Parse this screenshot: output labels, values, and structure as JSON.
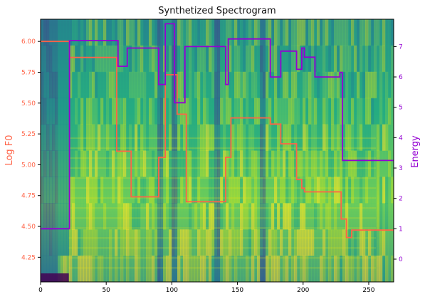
{
  "chart_data": {
    "type": "line",
    "title": "Synthetized Spectrogram",
    "xlabel": "",
    "ylabel_left": "Log F0",
    "ylabel_right": "Energy",
    "xlim": [
      0,
      269
    ],
    "ylim_left": [
      4.05,
      6.18
    ],
    "ylim_right": [
      -0.75,
      7.9
    ],
    "xticks": [
      0,
      50,
      100,
      150,
      200,
      250
    ],
    "yticks_left": [
      "4.25",
      "4.50",
      "4.75",
      "5.00",
      "5.25",
      "5.50",
      "5.75",
      "6.00"
    ],
    "yticks_right": [
      "0",
      "1",
      "2",
      "3",
      "4",
      "5",
      "6",
      "7"
    ],
    "background": "spectrogram heatmap (viridis colormap)",
    "colors": {
      "logf0": "#ff6347",
      "energy": "#9400d3"
    },
    "series": [
      {
        "axis": "left",
        "color": "#ff6347",
        "x": [
          0,
          22,
          22,
          58,
          58,
          66,
          66,
          69,
          69,
          90,
          90,
          92,
          92,
          95,
          95,
          97,
          97,
          104,
          104,
          111,
          111,
          141,
          141,
          145,
          145,
          147,
          147,
          175,
          175,
          183,
          183,
          195,
          195,
          199,
          199,
          201,
          201,
          209,
          209,
          229,
          229,
          233,
          233,
          237,
          237,
          244,
          244,
          269
        ],
        "y": [
          6.0,
          6.0,
          5.87,
          5.87,
          5.11,
          5.11,
          5.11,
          5.11,
          4.74,
          4.74,
          5.06,
          5.06,
          5.06,
          5.06,
          5.73,
          5.73,
          5.73,
          5.73,
          5.41,
          5.41,
          4.7,
          4.7,
          5.06,
          5.06,
          5.38,
          5.38,
          5.38,
          5.38,
          5.33,
          5.33,
          5.17,
          5.17,
          4.88,
          4.88,
          4.81,
          4.81,
          4.78,
          4.78,
          4.78,
          4.78,
          4.56,
          4.56,
          4.41,
          4.41,
          4.47,
          4.47,
          4.47,
          4.47
        ]
      },
      {
        "axis": "right",
        "color": "#9400d3",
        "x": [
          0,
          22,
          22,
          59,
          59,
          60,
          60,
          66,
          66,
          69,
          69,
          90,
          90,
          92,
          92,
          95,
          95,
          96,
          96,
          102,
          102,
          103,
          103,
          110,
          110,
          141,
          141,
          143,
          143,
          146,
          146,
          147,
          147,
          175,
          175,
          183,
          183,
          195,
          195,
          199,
          199,
          200,
          200,
          201,
          201,
          208,
          208,
          209,
          209,
          228,
          228,
          230,
          230,
          234,
          234,
          238,
          238,
          244,
          244,
          269
        ],
        "y": [
          1.0,
          1.0,
          7.2,
          7.2,
          6.35,
          6.35,
          6.35,
          6.35,
          6.95,
          6.95,
          6.95,
          6.95,
          5.75,
          5.75,
          5.75,
          5.75,
          7.75,
          7.75,
          7.75,
          7.75,
          5.15,
          5.15,
          5.15,
          5.15,
          7.0,
          7.0,
          5.75,
          5.75,
          7.25,
          7.25,
          7.25,
          7.25,
          7.25,
          7.25,
          6.0,
          6.0,
          6.85,
          6.85,
          6.25,
          6.25,
          6.95,
          6.95,
          6.95,
          6.95,
          6.65,
          6.65,
          6.65,
          6.65,
          6.0,
          6.0,
          6.15,
          6.15,
          3.25,
          3.25,
          3.25,
          3.25,
          3.25,
          3.25,
          3.25,
          3.25
        ]
      }
    ]
  }
}
